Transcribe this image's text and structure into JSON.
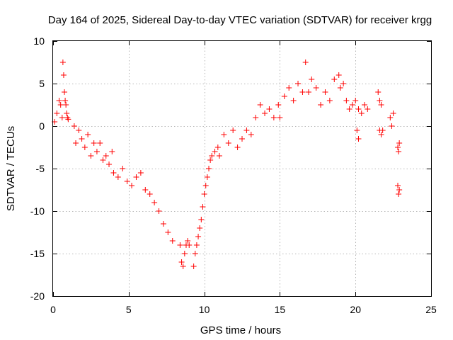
{
  "chart_data": {
    "type": "scatter",
    "title": "Day 164 of 2025, Sidereal Day-to-day VTEC variation (SDTVAR) for receiver krgg",
    "xlabel": "GPS time / hours",
    "ylabel": "SDTVAR / TECUs",
    "xlim": [
      0,
      25
    ],
    "ylim": [
      -20,
      10
    ],
    "x_ticks": [
      "0",
      "5",
      "10",
      "15",
      "20",
      "25"
    ],
    "y_ticks": [
      "10",
      "5",
      "0",
      "-5",
      "-10",
      "-15",
      "-20"
    ],
    "grid": true,
    "marker": "+",
    "color": "#ff0000",
    "series": [
      {
        "name": "SDTVAR",
        "segments": [
          {
            "x": [
              0.1,
              0.25,
              0.4,
              0.5,
              0.6,
              0.65,
              0.7,
              0.75,
              0.8,
              0.85,
              0.9,
              0.95,
              1.0
            ],
            "y": [
              0.5,
              1.5,
              3.0,
              2.5,
              1.0,
              7.5,
              6.0,
              4.0,
              3.0,
              2.5,
              1.5,
              1.0,
              0.8
            ]
          },
          {
            "x": [
              1.4,
              1.5,
              1.7,
              1.9,
              2.1,
              2.3,
              2.5,
              2.7,
              2.9,
              3.1,
              3.3,
              3.5,
              3.7,
              3.9
            ],
            "y": [
              0.0,
              -2.0,
              -0.5,
              -1.5,
              -2.5,
              -1.0,
              -3.5,
              -2.0,
              -3.0,
              -2.0,
              -4.0,
              -3.5,
              -4.5,
              -3.0
            ]
          },
          {
            "x": [
              4.0,
              4.3,
              4.6,
              4.9,
              5.2,
              5.5,
              5.8,
              6.1,
              6.4,
              6.7,
              7.0,
              7.3,
              7.6,
              7.9
            ],
            "y": [
              -5.5,
              -6.0,
              -5.0,
              -6.5,
              -7.0,
              -6.0,
              -5.5,
              -7.5,
              -8.0,
              -9.0,
              -10.0,
              -11.5,
              -12.5,
              -13.5
            ]
          },
          {
            "x": [
              8.4,
              8.5,
              8.6,
              8.7,
              8.8,
              8.9,
              9.0
            ],
            "y": [
              -14.0,
              -16.0,
              -16.5,
              -15.0,
              -14.0,
              -13.5,
              -14.0
            ]
          },
          {
            "x": [
              9.3,
              9.4,
              9.5,
              9.6,
              9.7,
              9.8,
              9.9,
              10.0,
              10.1,
              10.2,
              10.3,
              10.4,
              10.5,
              10.7,
              10.9
            ],
            "y": [
              -16.5,
              -15.0,
              -14.0,
              -13.0,
              -12.0,
              -11.0,
              -9.5,
              -8.0,
              -7.0,
              -6.0,
              -5.0,
              -4.0,
              -3.5,
              -3.0,
              -2.5
            ]
          },
          {
            "x": [
              11.0,
              11.3,
              11.6,
              11.9,
              12.2,
              12.5,
              12.8,
              13.1,
              13.4,
              13.7,
              14.0,
              14.3,
              14.6,
              14.9
            ],
            "y": [
              -3.5,
              -1.0,
              -2.0,
              -0.5,
              -2.5,
              -1.5,
              -0.5,
              -1.0,
              1.0,
              2.5,
              1.5,
              2.0,
              1.0,
              2.5
            ]
          },
          {
            "x": [
              15.0,
              15.3,
              15.6,
              15.9,
              16.2,
              16.5,
              16.7,
              16.9,
              17.1,
              17.4,
              17.7,
              18.0,
              18.3,
              18.6,
              18.9
            ],
            "y": [
              1.0,
              3.5,
              4.5,
              3.0,
              5.0,
              4.0,
              7.5,
              4.0,
              5.5,
              4.5,
              2.5,
              4.0,
              3.0,
              5.5,
              6.0
            ]
          },
          {
            "x": [
              19.0,
              19.2,
              19.4,
              19.6,
              19.8,
              20.0,
              20.2,
              20.4,
              20.6,
              20.8
            ],
            "y": [
              4.5,
              5.0,
              3.0,
              2.0,
              2.5,
              3.0,
              2.0,
              1.5,
              2.5,
              2.0
            ]
          },
          {
            "x": [
              20.1,
              20.2
            ],
            "y": [
              -0.5,
              -1.5
            ]
          },
          {
            "x": [
              21.5,
              21.6,
              21.7
            ],
            "y": [
              4.0,
              3.0,
              2.5
            ]
          },
          {
            "x": [
              21.6,
              21.7,
              21.8
            ],
            "y": [
              -0.5,
              -1.0,
              -0.5
            ]
          },
          {
            "x": [
              22.3,
              22.4,
              22.5
            ],
            "y": [
              1.0,
              0.0,
              1.5
            ]
          },
          {
            "x": [
              22.8,
              22.85,
              22.9
            ],
            "y": [
              -2.5,
              -3.0,
              -2.0
            ]
          },
          {
            "x": [
              22.8,
              22.85,
              22.9
            ],
            "y": [
              -7.0,
              -8.0,
              -7.5
            ]
          }
        ]
      }
    ]
  }
}
